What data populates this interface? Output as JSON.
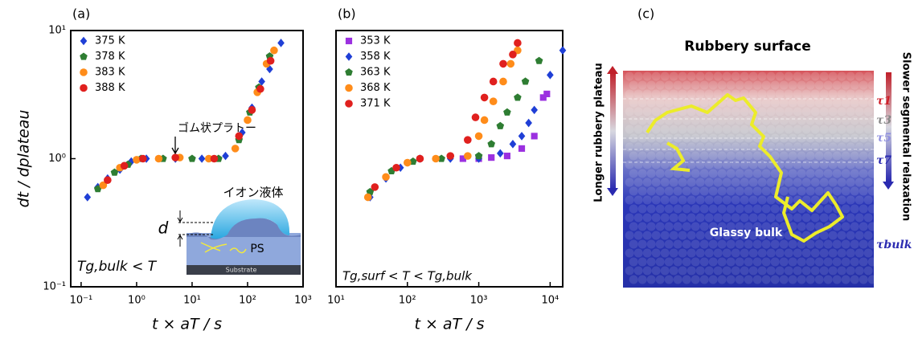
{
  "chart_data": [
    {
      "type": "scatter",
      "label": "(a)",
      "x_label": "t × aT / s",
      "y_label": "dt / dplateau",
      "xscale": "log",
      "yscale": "log",
      "xlim": [
        0.065,
        1000
      ],
      "ylim": [
        0.1,
        10
      ],
      "xticks": [
        {
          "value": 0.1,
          "label": "10⁻¹"
        },
        {
          "value": 1,
          "label": "10⁰"
        },
        {
          "value": 10,
          "label": "10¹"
        },
        {
          "value": 100,
          "label": "10²"
        },
        {
          "value": 1000,
          "label": "10³"
        }
      ],
      "yticks": [
        {
          "value": 0.1,
          "label": "10⁻¹"
        },
        {
          "value": 1,
          "label": "10⁰"
        },
        {
          "value": 10,
          "label": "10¹"
        }
      ],
      "legend": "upper left",
      "series": [
        {
          "name": "375 K",
          "color": "#1f3fd6",
          "marker": "diamond",
          "x": [
            0.13,
            0.2,
            0.3,
            0.5,
            0.8,
            1.5,
            5,
            15,
            40,
            80,
            120,
            180,
            250,
            400
          ],
          "values": [
            0.5,
            0.6,
            0.7,
            0.82,
            0.95,
            1.0,
            1.0,
            1.0,
            1.05,
            1.6,
            2.5,
            4.0,
            5.0,
            8.0
          ]
        },
        {
          "name": "378 K",
          "color": "#2e7d32",
          "marker": "pentagon",
          "x": [
            0.2,
            0.4,
            0.7,
            1.2,
            3,
            10,
            30,
            70,
            110,
            160,
            250
          ],
          "values": [
            0.58,
            0.78,
            0.9,
            1.0,
            1.0,
            1.0,
            1.0,
            1.4,
            2.3,
            3.6,
            6.3
          ]
        },
        {
          "name": "383 K",
          "color": "#ff8c1a",
          "marker": "circle",
          "x": [
            0.25,
            0.5,
            1,
            2.5,
            6,
            20,
            60,
            100,
            150,
            220,
            300
          ],
          "values": [
            0.62,
            0.85,
            0.98,
            1.0,
            1.02,
            1.0,
            1.2,
            2.0,
            3.3,
            5.5,
            7.0
          ]
        },
        {
          "name": "388 K",
          "color": "#e0201e",
          "marker": "circle",
          "x": [
            0.3,
            0.6,
            1.3,
            5,
            25,
            70,
            120,
            170,
            260
          ],
          "values": [
            0.68,
            0.88,
            1.0,
            1.02,
            1.0,
            1.5,
            2.4,
            3.5,
            5.8
          ]
        }
      ],
      "annotations": [
        "ゴム状プラトー",
        "イオン液体",
        "d",
        "PS",
        "Substrate",
        "Tg,bulk < T"
      ]
    },
    {
      "type": "scatter",
      "label": "(b)",
      "x_label": "t × aT / s",
      "xscale": "log",
      "yscale": "log",
      "xlim": [
        10,
        15000
      ],
      "ylim": [
        0.1,
        10
      ],
      "xticks": [
        {
          "value": 10,
          "label": "10¹"
        },
        {
          "value": 100,
          "label": "10²"
        },
        {
          "value": 1000,
          "label": "10³"
        },
        {
          "value": 10000,
          "label": "10⁴"
        }
      ],
      "legend": "upper left",
      "series": [
        {
          "name": "353 K",
          "color": "#9b30e0",
          "marker": "square",
          "x": [
            600,
            1000,
            1500,
            2500,
            4000,
            6000,
            8000,
            9000
          ],
          "values": [
            1.0,
            1.0,
            1.02,
            1.05,
            1.2,
            1.5,
            3.0,
            3.2
          ]
        },
        {
          "name": "358 K",
          "color": "#1f3fd6",
          "marker": "diamond",
          "x": [
            30,
            50,
            80,
            150,
            400,
            1000,
            2000,
            3000,
            4000,
            5000,
            6000,
            10000,
            15000
          ],
          "values": [
            0.5,
            0.7,
            0.85,
            1.0,
            1.0,
            1.0,
            1.1,
            1.3,
            1.5,
            1.9,
            2.4,
            4.5,
            7.0
          ]
        },
        {
          "name": "363 K",
          "color": "#2e7d32",
          "marker": "pentagon",
          "x": [
            30,
            60,
            120,
            300,
            1000,
            1500,
            2000,
            2500,
            3500,
            4500,
            7000
          ],
          "values": [
            0.55,
            0.8,
            0.95,
            1.0,
            1.05,
            1.3,
            1.8,
            2.3,
            3.0,
            4.0,
            5.8
          ]
        },
        {
          "name": "368 K",
          "color": "#ff8c1a",
          "marker": "circle",
          "x": [
            28,
            50,
            100,
            250,
            700,
            1000,
            1200,
            1600,
            2200,
            2800,
            3500
          ],
          "values": [
            0.5,
            0.72,
            0.93,
            1.0,
            1.05,
            1.5,
            2.0,
            2.8,
            4.0,
            5.5,
            7.0
          ]
        },
        {
          "name": "371 K",
          "color": "#e0201e",
          "marker": "circle",
          "x": [
            35,
            70,
            150,
            400,
            700,
            900,
            1200,
            1600,
            2200,
            3000,
            3500
          ],
          "values": [
            0.6,
            0.85,
            1.0,
            1.05,
            1.4,
            2.1,
            3.0,
            4.0,
            5.5,
            6.5,
            8.0
          ]
        }
      ],
      "annotations": [
        "Tg,surf < T < Tg,bulk"
      ]
    }
  ],
  "panel_c": {
    "label": "(c)",
    "title": "Rubbery surface",
    "left_arrow": "Longer rubbery plateau",
    "right_arrow": "Slower segmental relaxation",
    "bulk": "Glassy bulk",
    "taus": [
      "τ1",
      "τ3",
      "τ5",
      "τ7",
      "τbulk"
    ]
  }
}
